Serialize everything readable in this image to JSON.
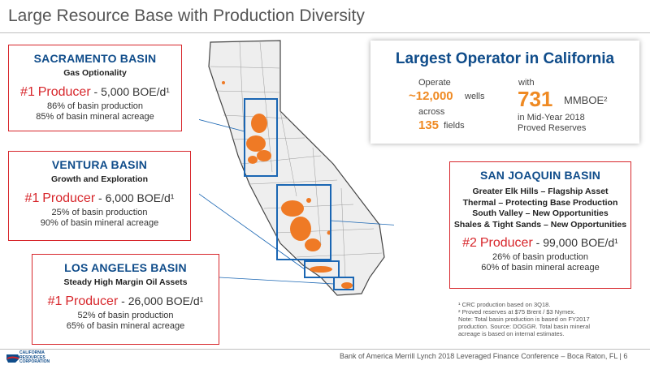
{
  "title": "Large Resource Base with Production Diversity",
  "sacramento": {
    "name": "SACRAMENTO BASIN",
    "subtitle": "Gas Optionality",
    "rank": "#1",
    "producer": "Producer",
    "rate": "- 5,000 BOE/d¹",
    "stat1": "86% of basin production",
    "stat2": "85% of basin mineral acreage"
  },
  "ventura": {
    "name": "VENTURA BASIN",
    "subtitle": "Growth and Exploration",
    "rank": "#1",
    "producer": "Producer",
    "rate": "- 6,000 BOE/d¹",
    "stat1": "25% of basin production",
    "stat2": "90% of basin mineral acreage"
  },
  "los_angeles": {
    "name": "LOS ANGELES BASIN",
    "subtitle": "Steady High Margin Oil Assets",
    "rank": "#1",
    "producer": "Producer",
    "rate": "- 26,000 BOE/d¹",
    "stat1": "52% of basin production",
    "stat2": "65% of basin mineral acreage"
  },
  "san_joaquin": {
    "name": "SAN JOAQUIN BASIN",
    "line1": "Greater Elk Hills – Flagship Asset",
    "line2": "Thermal – Protecting Base Production",
    "line3": "South Valley – New Opportunities",
    "line4": "Shales & Tight Sands – New Opportunities",
    "rank": "#2",
    "producer": "Producer",
    "rate": "- 99,000 BOE/d¹",
    "stat1": "26% of basin production",
    "stat2": "60% of basin mineral acreage"
  },
  "operator": {
    "title": "Largest Operator in California",
    "operate": "Operate",
    "wells_num": "~12,000",
    "wells": "wells",
    "across": "across",
    "fields_num": "135",
    "fields": "fields",
    "with": "with",
    "reserves_num": "731",
    "reserves_unit": "MMBOE²",
    "reserves_l1": "in Mid-Year 2018",
    "reserves_l2": "Proved Reserves"
  },
  "footnotes": {
    "f1": "¹ CRC production based on 3Q18.",
    "f2": "² Proved reserves at $75 Brent / $3 Nymex.",
    "f3": "Note: Total basin production is based on FY2017",
    "f4": "production. Source: DOGGR. Total basin mineral",
    "f5": "acreage is based on internal estimates."
  },
  "footer": {
    "conference": "Bank of America Merrill Lynch 2018 Leveraged Finance Conference – Boca Raton, FL",
    "page": "| 6"
  },
  "logo": {
    "l1": "CALIFORNIA",
    "l2": "RESOURCES",
    "l3": "CORPORATION"
  },
  "colors": {
    "accent_red": "#d7262b",
    "brand_blue": "#0f4c8a",
    "highlight_orange": "#ef8a23"
  }
}
